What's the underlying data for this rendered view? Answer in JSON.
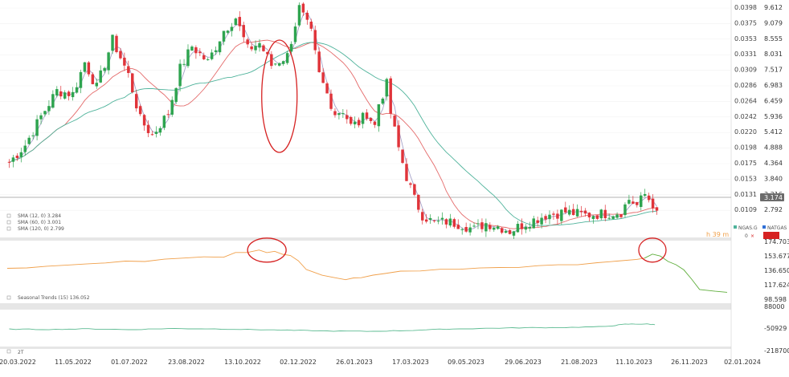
{
  "colors": {
    "up": "#2ea44f",
    "down": "#e0343a",
    "sma_fast": "#a7a3c9",
    "sma_mid": "#e46a6a",
    "sma_slow": "#4fb39b",
    "seasonal": "#f0a04b",
    "seasonal_projection": "#5fae3c",
    "cot": "#5dbb92",
    "last_price_badge": "#6b6b6b",
    "highlight": "#d62222"
  },
  "legend": {
    "sma1": "SMA (12, 0) 3.284",
    "sma2": "SMA (60, 0) 3.001",
    "sma3": "SMA (120, 0) 2.799",
    "seasonal": "Seasonal Trends (15) 136.052",
    "cot": "2T",
    "symbol1": "NGAS.G",
    "symbol2": "NATGAS",
    "badge": "×",
    "close": "0",
    "watermark": "h 39 m"
  },
  "last_price": "3.174",
  "chart_data": [
    {
      "type": "candlestick",
      "panel": "price",
      "x_ticks": [
        "20.03.2022",
        "11.05.2022",
        "01.07.2022",
        "23.08.2022",
        "13.10.2022",
        "02.12.2022",
        "26.01.2023",
        "17.03.2023",
        "09.05.2023",
        "29.06.2023",
        "21.08.2023",
        "11.10.2023",
        "26.11.2023",
        "02.01.2024"
      ],
      "y_left_ticks": [
        "0.0398",
        "0.0375",
        "0.0353",
        "0.0331",
        "0.0309",
        "0.0286",
        "0.0264",
        "0.0242",
        "0.0220",
        "0.0198",
        "0.0175",
        "0.0153",
        "0.0131",
        "0.0109"
      ],
      "y_right_ticks": [
        "9.612",
        "9.079",
        "8.555",
        "8.031",
        "7.517",
        "6.983",
        "6.459",
        "5.936",
        "5.412",
        "4.888",
        "4.364",
        "3.840",
        "3.316",
        "2.792"
      ],
      "ylim": [
        2.6,
        9.75
      ],
      "close_path": [
        [
          0,
          4.85
        ],
        [
          4,
          5.4
        ],
        [
          8,
          6.3
        ],
        [
          12,
          7.1
        ],
        [
          16,
          7.0
        ],
        [
          19,
          8.0
        ],
        [
          22,
          7.2
        ],
        [
          26,
          8.7
        ],
        [
          30,
          7.6
        ],
        [
          33,
          6.2
        ],
        [
          36,
          5.7
        ],
        [
          40,
          6.4
        ],
        [
          43,
          7.8
        ],
        [
          46,
          8.5
        ],
        [
          50,
          8.0
        ],
        [
          54,
          9.0
        ],
        [
          57,
          9.4
        ],
        [
          60,
          8.4
        ],
        [
          63,
          8.6
        ],
        [
          66,
          7.9
        ],
        [
          70,
          8.2
        ],
        [
          73,
          9.7
        ],
        [
          76,
          8.9
        ],
        [
          78,
          7.6
        ],
        [
          80,
          7.0
        ],
        [
          82,
          6.4
        ],
        [
          84,
          6.5
        ],
        [
          86,
          6.0
        ],
        [
          88,
          6.1
        ],
        [
          90,
          6.4
        ],
        [
          92,
          6.0
        ],
        [
          93,
          6.7
        ],
        [
          95,
          7.3
        ],
        [
          96,
          6.4
        ],
        [
          98,
          5.3
        ],
        [
          100,
          4.4
        ],
        [
          102,
          3.7
        ],
        [
          104,
          3.2
        ],
        [
          107,
          2.95
        ],
        [
          110,
          3.0
        ],
        [
          114,
          2.9
        ],
        [
          117,
          2.75
        ],
        [
          120,
          2.95
        ],
        [
          123,
          2.85
        ],
        [
          126,
          2.7
        ],
        [
          130,
          2.95
        ],
        [
          135,
          3.2
        ],
        [
          140,
          3.3
        ],
        [
          145,
          3.2
        ],
        [
          150,
          3.25
        ],
        [
          154,
          3.3
        ],
        [
          156,
          3.7
        ],
        [
          158,
          3.5
        ],
        [
          160,
          3.85
        ],
        [
          162,
          3.55
        ],
        [
          163,
          3.2
        ]
      ],
      "seed": 7,
      "sma": [
        {
          "name": "SMA (12, 0) 3.284",
          "period": 12,
          "color_key": "sma_fast"
        },
        {
          "name": "SMA (60, 0) 3.001",
          "period": 60,
          "color_key": "sma_mid"
        },
        {
          "name": "SMA (120, 0) 2.799",
          "period": 120,
          "color_key": "sma_slow"
        }
      ],
      "last_value": 3.174,
      "highlights": [
        {
          "index": 68,
          "label": "ellipse"
        }
      ]
    },
    {
      "type": "line",
      "panel": "seasonal",
      "title": "Seasonal Trends (15) 136.052",
      "y_ticks": [
        "174.703",
        "153.677",
        "136.650",
        "117.624",
        "98.598"
      ],
      "ylim": [
        98.598,
        174.703
      ],
      "series": [
        {
          "name": "Seasonal Trends (15) 136.052",
          "color_key": "seasonal",
          "points": [
            [
              0,
              140
            ],
            [
              5,
              141
            ],
            [
              10,
              142
            ],
            [
              15,
              144
            ],
            [
              20,
              145
            ],
            [
              25,
              147
            ],
            [
              30,
              149
            ],
            [
              35,
              150
            ],
            [
              40,
              152
            ],
            [
              45,
              155
            ],
            [
              50,
              156
            ],
            [
              55,
              155
            ],
            [
              58,
              162
            ],
            [
              61,
              161
            ],
            [
              64,
              165
            ],
            [
              66,
              162
            ],
            [
              68,
              164
            ],
            [
              70,
              160
            ],
            [
              72,
              158
            ],
            [
              74,
              150
            ],
            [
              76,
              138
            ],
            [
              78,
              134
            ],
            [
              80,
              130
            ],
            [
              83,
              127
            ],
            [
              86,
              125
            ],
            [
              88,
              126
            ],
            [
              90,
              127
            ],
            [
              93,
              130
            ],
            [
              96,
              133
            ],
            [
              100,
              136
            ],
            [
              105,
              137
            ],
            [
              110,
              138
            ],
            [
              115,
              139
            ],
            [
              120,
              140
            ],
            [
              125,
              141
            ],
            [
              130,
              142
            ],
            [
              135,
              143
            ],
            [
              140,
              144
            ],
            [
              145,
              145
            ],
            [
              150,
              147
            ],
            [
              155,
              150
            ],
            [
              160,
              152
            ],
            [
              162,
              154
            ]
          ]
        },
        {
          "name": "",
          "color_key": "seasonal_projection",
          "points": [
            [
              162,
              154
            ],
            [
              164,
              160
            ],
            [
              166,
              157
            ],
            [
              168,
              150
            ],
            [
              170,
              145
            ],
            [
              172,
              138
            ],
            [
              174,
              125
            ],
            [
              176,
              110
            ],
            [
              180,
              108
            ],
            [
              183,
              107
            ]
          ]
        }
      ],
      "highlights": [
        {
          "index": 66
        },
        {
          "index": 164
        }
      ]
    },
    {
      "type": "line",
      "panel": "cot",
      "title": "2T",
      "y_ticks": [
        "88000",
        "-50929",
        "-218700"
      ],
      "ylim": [
        -218700,
        88000
      ],
      "series": [
        {
          "name": "",
          "color_key": "cot",
          "points": [
            [
              0,
              -75000
            ],
            [
              10,
              -78000
            ],
            [
              20,
              -72000
            ],
            [
              30,
              -80000
            ],
            [
              40,
              -70000
            ],
            [
              50,
              -72000
            ],
            [
              60,
              -78000
            ],
            [
              70,
              -85000
            ],
            [
              80,
              -92000
            ],
            [
              90,
              -95000
            ],
            [
              100,
              -88000
            ],
            [
              110,
              -75000
            ],
            [
              120,
              -68000
            ],
            [
              130,
              -62000
            ],
            [
              140,
              -60000
            ],
            [
              150,
              -52000
            ],
            [
              155,
              -30000
            ],
            [
              160,
              -28000
            ],
            [
              163,
              -35000
            ]
          ]
        }
      ]
    }
  ]
}
